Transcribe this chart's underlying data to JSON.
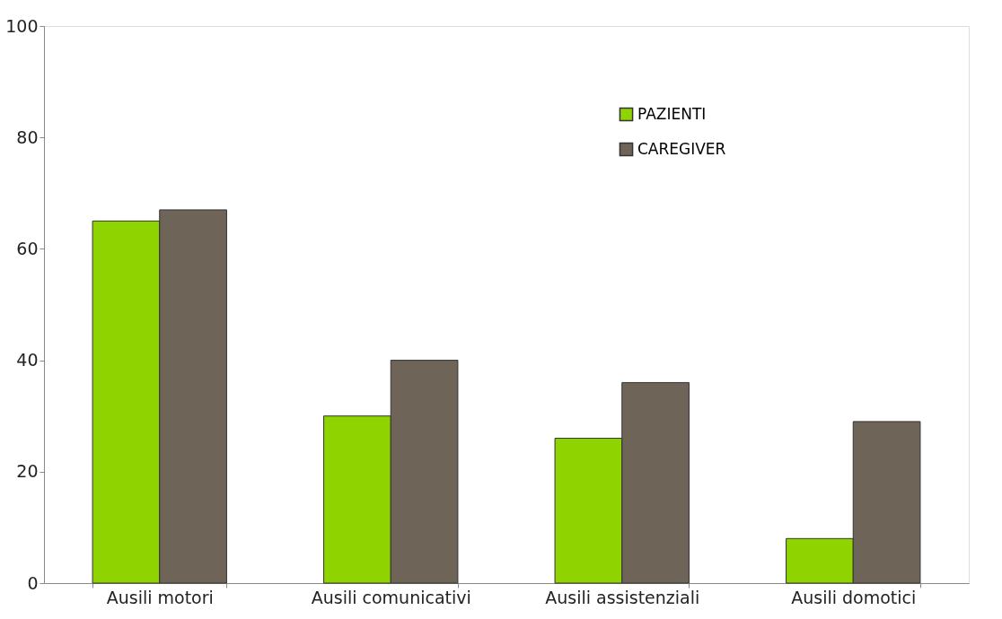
{
  "chart_data": {
    "type": "bar",
    "categories": [
      "Ausili motori",
      "Ausili comunicativi",
      "Ausili assistenziali",
      "Ausili domotici"
    ],
    "series": [
      {
        "name": "PAZIENTI",
        "color": "#8fd400",
        "values": [
          65,
          30,
          26,
          8
        ]
      },
      {
        "name": "CAREGIVER",
        "color": "#6e6558",
        "values": [
          67,
          40,
          36,
          29
        ]
      }
    ],
    "ylim": [
      0,
      100
    ],
    "yticks": [
      0,
      20,
      40,
      60,
      80,
      100
    ],
    "grid": false,
    "legend": "top right"
  }
}
